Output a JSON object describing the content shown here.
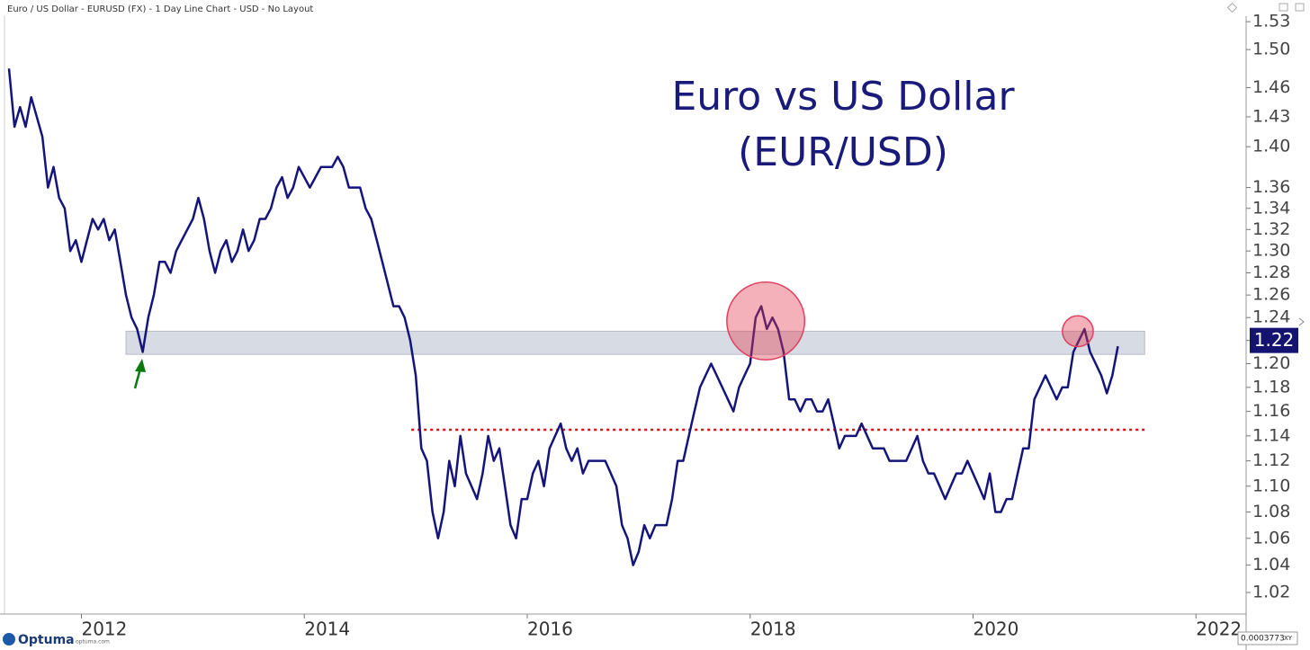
{
  "header": "Euro / US Dollar - EURUSD (FX) - 1 Day Line Chart - USD - No Layout",
  "footer": {
    "logo": "Optuma",
    "site": "optuma.com",
    "scale": "0.0003773",
    "mode": "XY"
  },
  "chart_data": {
    "type": "line",
    "title": [
      "Euro vs US Dollar",
      "(EUR/USD)"
    ],
    "color": "#14147a",
    "log_scale": true,
    "x": [
      2011.35,
      2011.4,
      2011.45,
      2011.5,
      2011.55,
      2011.6,
      2011.65,
      2011.7,
      2011.75,
      2011.8,
      2011.85,
      2011.9,
      2011.95,
      2012,
      2012.05,
      2012.1,
      2012.15,
      2012.2,
      2012.25,
      2012.3,
      2012.35,
      2012.4,
      2012.45,
      2012.5,
      2012.55,
      2012.6,
      2012.65,
      2012.7,
      2012.75,
      2012.8,
      2012.85,
      2012.9,
      2012.95,
      2013,
      2013.05,
      2013.1,
      2013.15,
      2013.2,
      2013.25,
      2013.3,
      2013.35,
      2013.4,
      2013.45,
      2013.5,
      2013.55,
      2013.6,
      2013.65,
      2013.7,
      2013.75,
      2013.8,
      2013.85,
      2013.9,
      2013.95,
      2014,
      2014.05,
      2014.1,
      2014.15,
      2014.2,
      2014.25,
      2014.3,
      2014.35,
      2014.4,
      2014.45,
      2014.5,
      2014.55,
      2014.6,
      2014.65,
      2014.7,
      2014.75,
      2014.8,
      2014.85,
      2014.9,
      2014.95,
      2015,
      2015.05,
      2015.1,
      2015.15,
      2015.2,
      2015.25,
      2015.3,
      2015.35,
      2015.4,
      2015.45,
      2015.5,
      2015.55,
      2015.6,
      2015.65,
      2015.7,
      2015.75,
      2015.8,
      2015.85,
      2015.9,
      2015.95,
      2016,
      2016.05,
      2016.1,
      2016.15,
      2016.2,
      2016.25,
      2016.3,
      2016.35,
      2016.4,
      2016.45,
      2016.5,
      2016.55,
      2016.6,
      2016.65,
      2016.7,
      2016.75,
      2016.8,
      2016.85,
      2016.9,
      2016.95,
      2017,
      2017.05,
      2017.1,
      2017.15,
      2017.2,
      2017.25,
      2017.3,
      2017.35,
      2017.4,
      2017.45,
      2017.5,
      2017.55,
      2017.6,
      2017.65,
      2017.7,
      2017.75,
      2017.8,
      2017.85,
      2017.9,
      2017.95,
      2018,
      2018.05,
      2018.1,
      2018.15,
      2018.2,
      2018.25,
      2018.3,
      2018.35,
      2018.4,
      2018.45,
      2018.5,
      2018.55,
      2018.6,
      2018.65,
      2018.7,
      2018.75,
      2018.8,
      2018.85,
      2018.9,
      2018.95,
      2019,
      2019.05,
      2019.1,
      2019.15,
      2019.2,
      2019.25,
      2019.3,
      2019.35,
      2019.4,
      2019.45,
      2019.5,
      2019.55,
      2019.6,
      2019.65,
      2019.7,
      2019.75,
      2019.8,
      2019.85,
      2019.9,
      2019.95,
      2020,
      2020.05,
      2020.1,
      2020.15,
      2020.2,
      2020.25,
      2020.3,
      2020.35,
      2020.4,
      2020.45,
      2020.5,
      2020.55,
      2020.6,
      2020.65,
      2020.7,
      2020.75,
      2020.8,
      2020.85,
      2020.9,
      2020.95,
      2021,
      2021.05,
      2021.1,
      2021.15,
      2021.2,
      2021.25,
      2021.3
    ],
    "values": [
      1.48,
      1.42,
      1.44,
      1.42,
      1.45,
      1.43,
      1.41,
      1.36,
      1.38,
      1.35,
      1.34,
      1.3,
      1.31,
      1.29,
      1.31,
      1.33,
      1.32,
      1.33,
      1.31,
      1.32,
      1.29,
      1.26,
      1.24,
      1.23,
      1.21,
      1.24,
      1.26,
      1.29,
      1.29,
      1.28,
      1.3,
      1.31,
      1.32,
      1.33,
      1.35,
      1.33,
      1.3,
      1.28,
      1.3,
      1.31,
      1.29,
      1.3,
      1.32,
      1.3,
      1.31,
      1.33,
      1.33,
      1.34,
      1.36,
      1.37,
      1.35,
      1.36,
      1.38,
      1.37,
      1.36,
      1.37,
      1.38,
      1.38,
      1.38,
      1.39,
      1.38,
      1.36,
      1.36,
      1.36,
      1.34,
      1.33,
      1.31,
      1.29,
      1.27,
      1.25,
      1.25,
      1.24,
      1.22,
      1.19,
      1.13,
      1.12,
      1.08,
      1.06,
      1.08,
      1.12,
      1.1,
      1.14,
      1.11,
      1.1,
      1.09,
      1.11,
      1.14,
      1.12,
      1.13,
      1.1,
      1.07,
      1.06,
      1.09,
      1.09,
      1.11,
      1.12,
      1.1,
      1.13,
      1.14,
      1.15,
      1.13,
      1.12,
      1.13,
      1.11,
      1.12,
      1.12,
      1.12,
      1.12,
      1.11,
      1.1,
      1.07,
      1.06,
      1.04,
      1.05,
      1.07,
      1.06,
      1.07,
      1.07,
      1.07,
      1.09,
      1.12,
      1.12,
      1.14,
      1.16,
      1.18,
      1.19,
      1.2,
      1.19,
      1.18,
      1.17,
      1.16,
      1.18,
      1.19,
      1.2,
      1.24,
      1.25,
      1.23,
      1.24,
      1.23,
      1.21,
      1.17,
      1.17,
      1.16,
      1.17,
      1.17,
      1.16,
      1.16,
      1.17,
      1.15,
      1.13,
      1.14,
      1.14,
      1.14,
      1.15,
      1.14,
      1.13,
      1.13,
      1.13,
      1.12,
      1.12,
      1.12,
      1.12,
      1.13,
      1.14,
      1.12,
      1.11,
      1.11,
      1.1,
      1.09,
      1.1,
      1.11,
      1.11,
      1.12,
      1.11,
      1.1,
      1.09,
      1.11,
      1.08,
      1.08,
      1.09,
      1.09,
      1.11,
      1.13,
      1.13,
      1.17,
      1.18,
      1.19,
      1.18,
      1.17,
      1.18,
      1.18,
      1.21,
      1.22,
      1.23,
      1.21,
      1.2,
      1.19,
      1.175,
      1.19,
      1.215
    ],
    "xlim": [
      2011.31,
      2022.45
    ],
    "xticks": [
      2012,
      2014,
      2016,
      2018,
      2020,
      2022
    ],
    "ylim": [
      1.0045,
      1.536
    ],
    "yticks": [
      1.02,
      1.04,
      1.06,
      1.08,
      {
        "value": 1.1,
        "label": "1.10"
      },
      1.12,
      1.14,
      1.16,
      1.18,
      {
        "value": 1.2,
        "label": "1.20"
      },
      1.22,
      1.24,
      1.26,
      1.28,
      {
        "value": 1.3,
        "label": "1.30"
      },
      1.32,
      1.34,
      1.36,
      {
        "value": 1.4,
        "label": "1.40"
      },
      1.43,
      1.46,
      {
        "value": 1.5,
        "label": "1.50"
      },
      1.53
    ],
    "last_price": 1.22,
    "band": {
      "y": [
        1.208,
        1.228
      ],
      "x": [
        2012.4,
        2021.54
      ],
      "color": "#d7dbe3"
    },
    "hline": {
      "y": 1.145,
      "x": [
        2014.96,
        2021.54
      ],
      "color": "#e01010"
    },
    "highlights": [
      {
        "x": 2018.14,
        "y": 1.237,
        "r": 0.028
      },
      {
        "x": 2020.94,
        "y": 1.228,
        "r": 0.011
      }
    ]
  }
}
